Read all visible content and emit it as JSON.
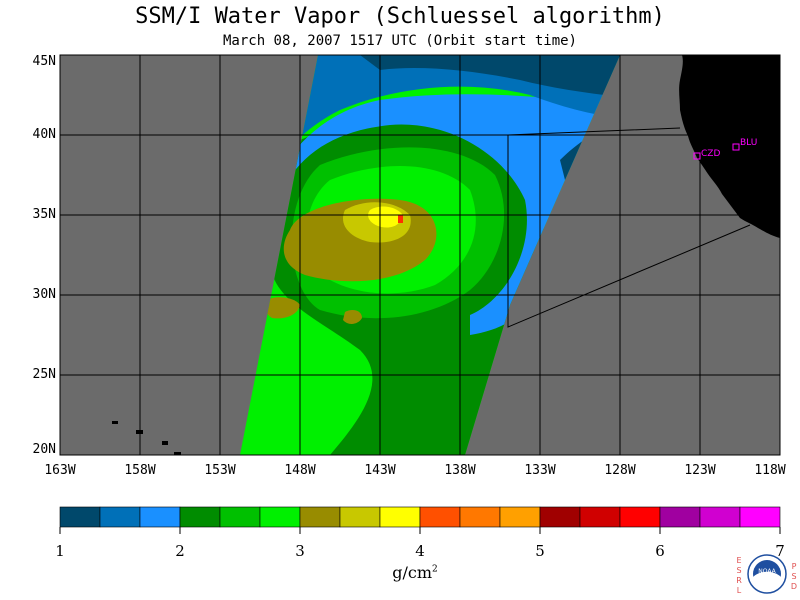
{
  "header": {
    "title": "SSM/I Water Vapor (Schluessel algorithm)",
    "subtitle": "March 08, 2007  1517 UTC  (Orbit start time)"
  },
  "map": {
    "lat_ticks": [
      "45N",
      "40N",
      "35N",
      "30N",
      "25N",
      "20N"
    ],
    "lon_ticks": [
      "163W",
      "158W",
      "153W",
      "148W",
      "143W",
      "138W",
      "133W",
      "128W",
      "123W",
      "118W"
    ],
    "stations": [
      {
        "code": "CZD"
      },
      {
        "code": "BLU"
      }
    ],
    "colors": {
      "ocean_no_data": "#6b6b6b",
      "land": "#000000",
      "grid": "#000000"
    }
  },
  "colorbar": {
    "ticks": [
      "1",
      "2",
      "3",
      "4",
      "5",
      "6",
      "7"
    ],
    "unit_base": "g/cm",
    "unit_exp": "2",
    "colors": [
      "#00486b",
      "#0070b8",
      "#1a90ff",
      "#008c00",
      "#00c000",
      "#00f000",
      "#988c00",
      "#c8c800",
      "#ffff00",
      "#ff5000",
      "#ff7800",
      "#ffa000",
      "#a00000",
      "#d00000",
      "#ff0000",
      "#a000a0",
      "#d000d0",
      "#ff00ff"
    ]
  },
  "logo": {
    "left_letters": "ESRL",
    "right_letters": "PSD",
    "center_text": "NOAA"
  }
}
